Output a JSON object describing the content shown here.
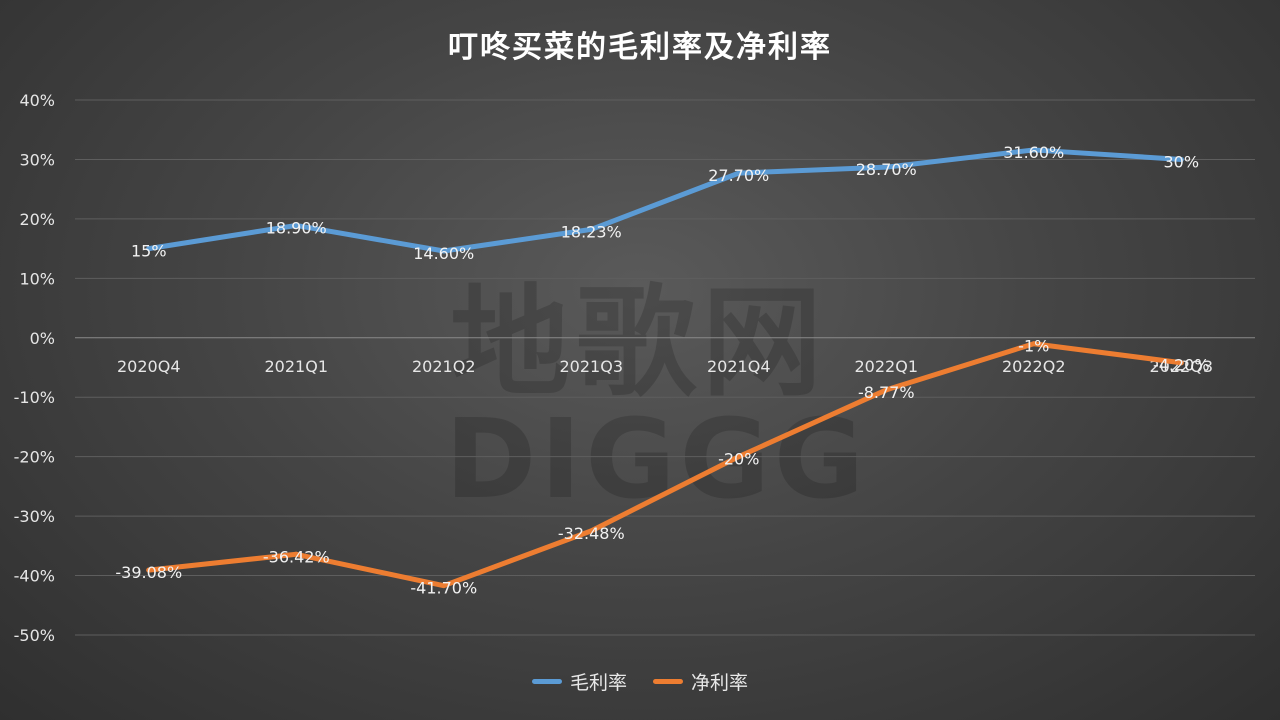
{
  "chart_data": {
    "type": "line",
    "title": "叮咚买菜的毛利率及净利率",
    "categories": [
      "2020Q4",
      "2021Q1",
      "2021Q2",
      "2021Q3",
      "2021Q4",
      "2022Q1",
      "2022Q2",
      "2022Q3"
    ],
    "ylim": [
      -50,
      40
    ],
    "yticks": [
      "40%",
      "30%",
      "20%",
      "10%",
      "0%",
      "-10%",
      "-20%",
      "-30%",
      "-40%",
      "-50%"
    ],
    "ytick_values": [
      40,
      30,
      20,
      10,
      0,
      -10,
      -20,
      -30,
      -40,
      -50
    ],
    "grid": true,
    "legend_position": "bottom",
    "series": [
      {
        "name": "毛利率",
        "color": "#5b9bd5",
        "values": [
          15,
          18.9,
          14.6,
          18.23,
          27.7,
          28.7,
          31.6,
          30
        ],
        "labels": [
          "15%",
          "18.90%",
          "14.60%",
          "18.23%",
          "27.70%",
          "28.70%",
          "31.60%",
          "30%"
        ]
      },
      {
        "name": "净利率",
        "color": "#ed7d31",
        "values": [
          -39.08,
          -36.42,
          -41.7,
          -32.48,
          -20,
          -8.77,
          -1,
          -4.2
        ],
        "labels": [
          "-39.08%",
          "-36.42%",
          "-41.70%",
          "-32.48%",
          "-20%",
          "-8.77%",
          "-1%",
          "-4.20%"
        ]
      }
    ]
  },
  "watermark": {
    "line1": "地歌网",
    "line2": "DIGGG"
  }
}
